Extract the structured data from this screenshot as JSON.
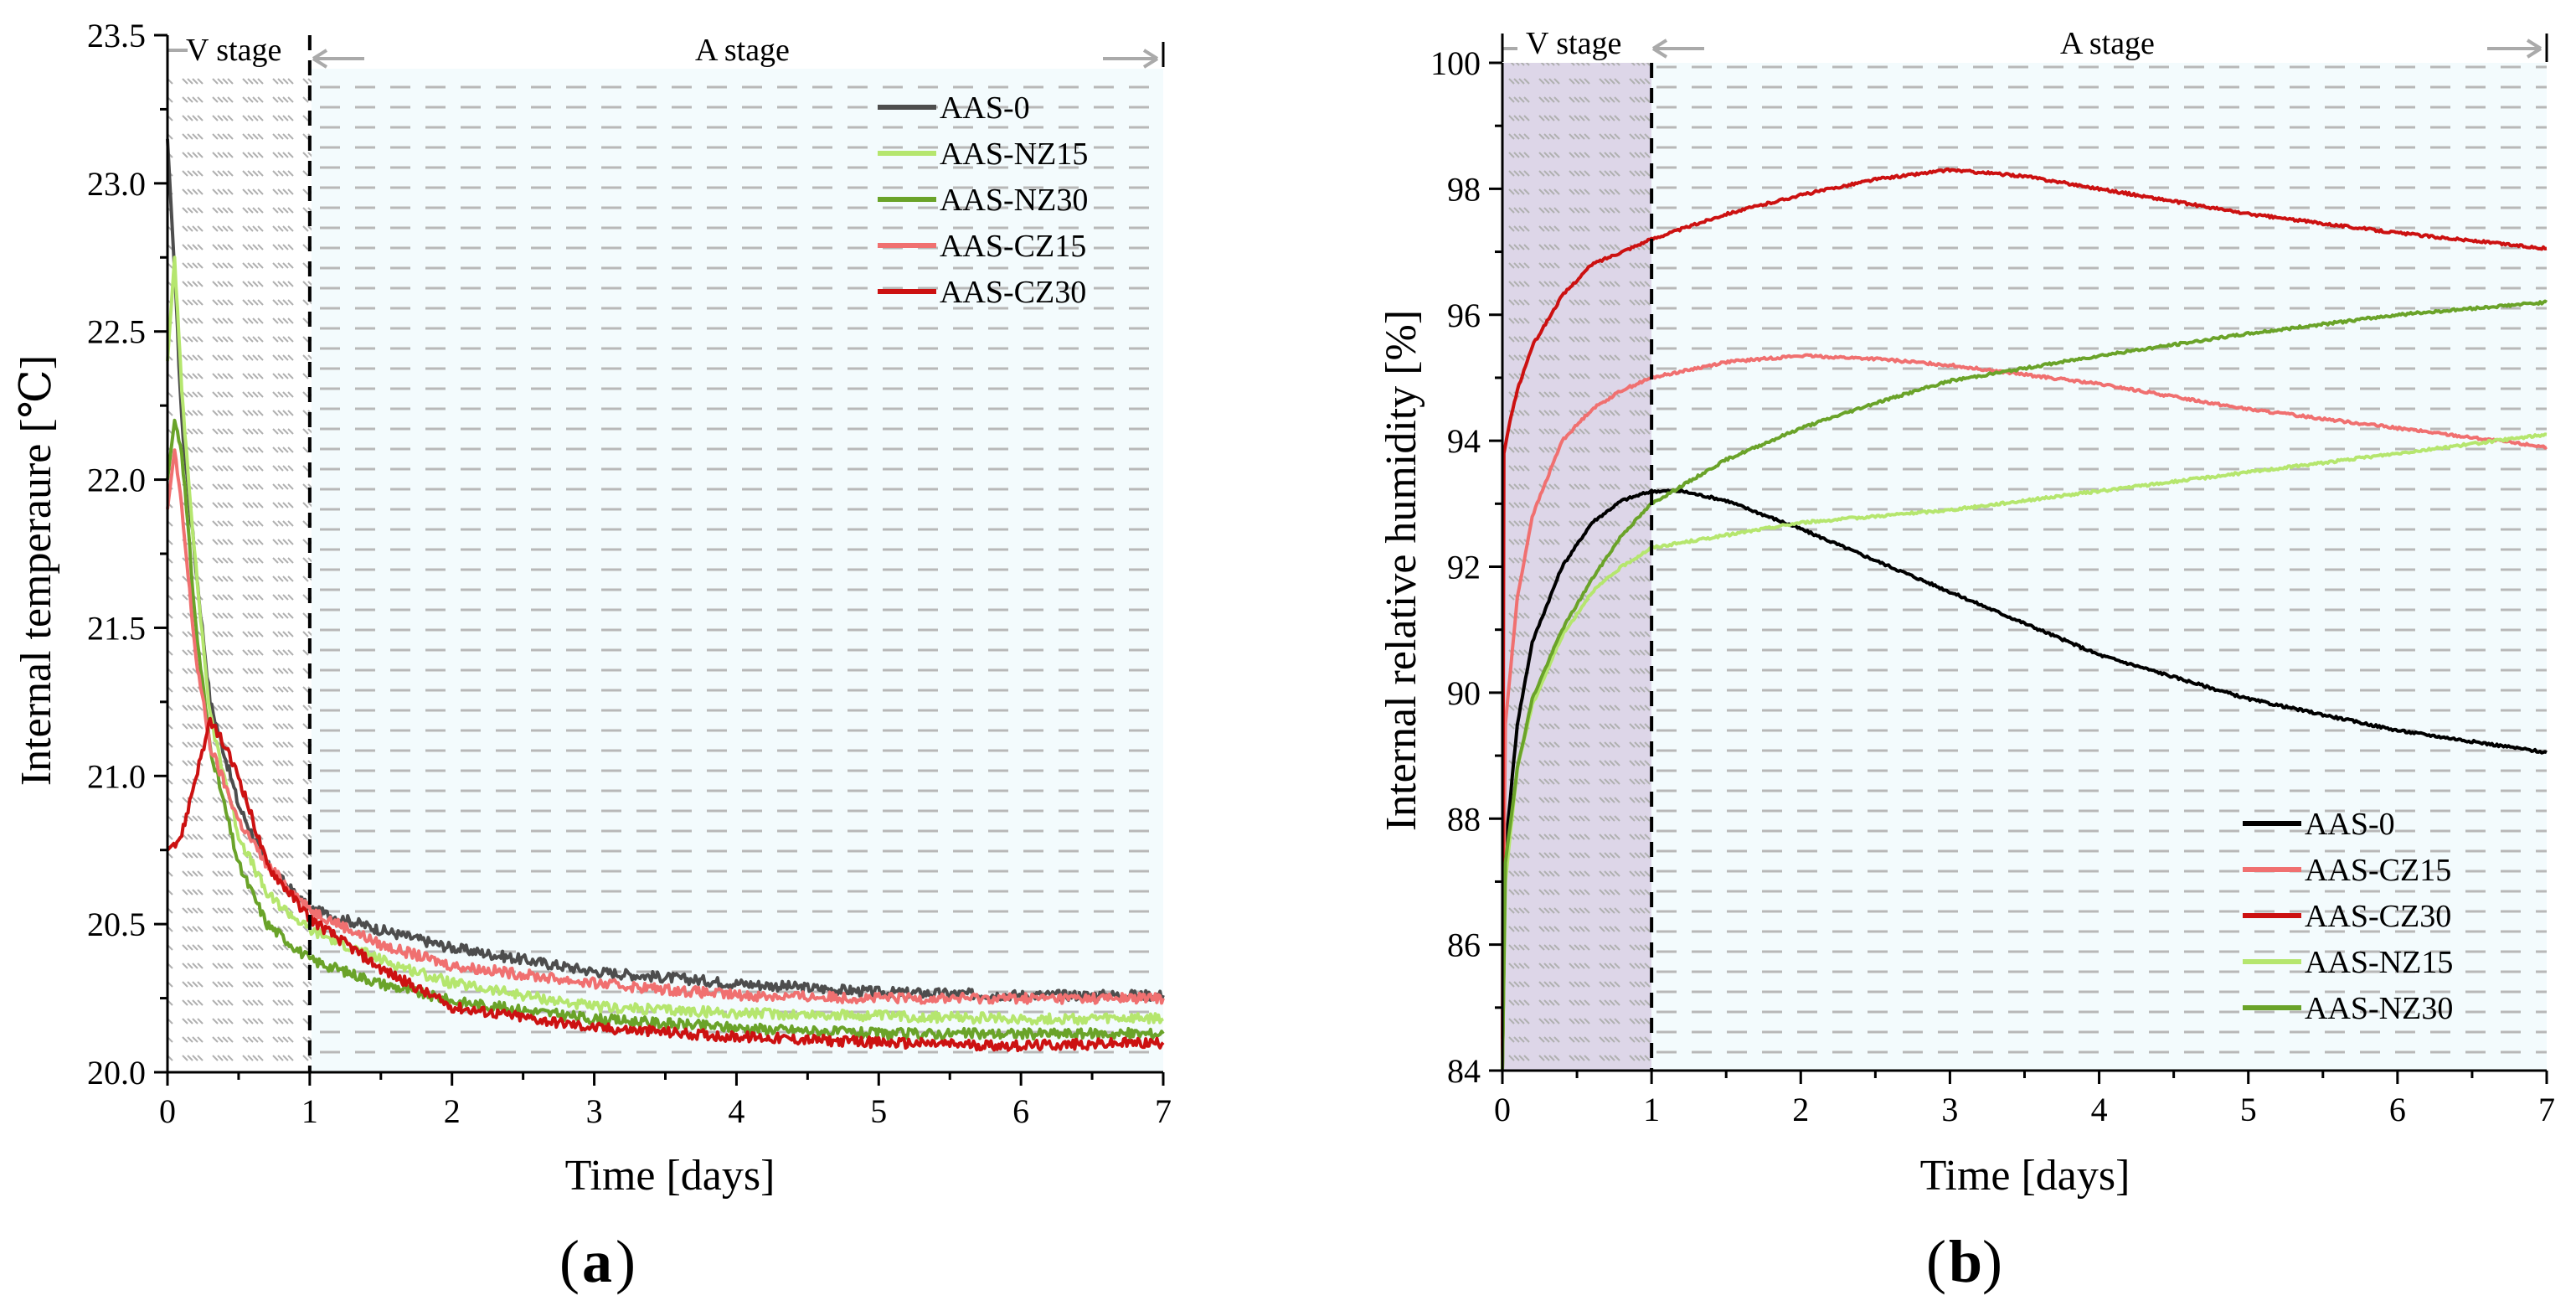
{
  "chart_data": [
    {
      "type": "line",
      "id": "a",
      "panel_label": "a",
      "xlabel": "Time [days]",
      "ylabel": "Internal temperaure [℃]",
      "xlim": [
        0,
        7
      ],
      "ylim": [
        20.0,
        23.5
      ],
      "xticks": [
        0,
        1,
        2,
        3,
        4,
        5,
        6,
        7
      ],
      "xtick_labels": [
        "0",
        "1",
        "2",
        "3",
        "4",
        "5",
        "6",
        "7"
      ],
      "yticks": [
        20.0,
        20.5,
        21.0,
        21.5,
        22.0,
        22.5,
        23.0,
        23.5
      ],
      "ytick_labels": [
        "20.0",
        "20.5",
        "21.0",
        "21.5",
        "22.0",
        "22.5",
        "23.0",
        "23.5"
      ],
      "stage_divider": 1,
      "stages": [
        "V stage",
        "A stage"
      ],
      "legend_position": "top-right",
      "series": [
        {
          "name": "AAS-0",
          "color": "#4d4d4d",
          "x": [
            0,
            0.05,
            0.1,
            0.2,
            0.3,
            0.5,
            0.7,
            1.0,
            1.5,
            2,
            2.5,
            3,
            4,
            5,
            6,
            7
          ],
          "y": [
            23.15,
            22.7,
            22.2,
            21.7,
            21.25,
            20.9,
            20.7,
            20.55,
            20.48,
            20.42,
            20.38,
            20.34,
            20.3,
            20.27,
            20.26,
            20.26
          ]
        },
        {
          "name": "AAS-NZ15",
          "color": "#b5e66e",
          "x": [
            0,
            0.05,
            0.1,
            0.2,
            0.3,
            0.5,
            0.7,
            1.0,
            1.5,
            2,
            3,
            4,
            5,
            6,
            7
          ],
          "y": [
            22.4,
            22.75,
            22.3,
            21.7,
            21.2,
            20.8,
            20.6,
            20.48,
            20.38,
            20.3,
            20.22,
            20.2,
            20.19,
            20.18,
            20.18
          ]
        },
        {
          "name": "AAS-NZ30",
          "color": "#6aa329",
          "x": [
            0,
            0.05,
            0.1,
            0.2,
            0.3,
            0.5,
            0.7,
            1.0,
            1.5,
            2,
            3,
            4,
            5,
            6,
            7
          ],
          "y": [
            22.0,
            22.2,
            22.1,
            21.5,
            21.1,
            20.7,
            20.5,
            20.38,
            20.3,
            20.24,
            20.18,
            20.15,
            20.13,
            20.13,
            20.13
          ]
        },
        {
          "name": "AAS-CZ15",
          "color": "#f07070",
          "x": [
            0,
            0.05,
            0.1,
            0.2,
            0.3,
            0.5,
            0.7,
            1.0,
            1.5,
            2,
            3,
            4,
            5,
            6,
            7
          ],
          "y": [
            21.9,
            22.1,
            21.9,
            21.4,
            21.1,
            20.85,
            20.7,
            20.55,
            20.43,
            20.36,
            20.3,
            20.26,
            20.25,
            20.25,
            20.25
          ]
        },
        {
          "name": "AAS-CZ30",
          "color": "#cc1111",
          "x": [
            0,
            0.1,
            0.2,
            0.3,
            0.35,
            0.5,
            0.7,
            1.0,
            1.5,
            2,
            3,
            4,
            5,
            6,
            7
          ],
          "y": [
            20.75,
            20.8,
            21.0,
            21.18,
            21.15,
            21.0,
            20.7,
            20.52,
            20.35,
            20.22,
            20.15,
            20.12,
            20.1,
            20.09,
            20.1
          ]
        }
      ]
    },
    {
      "type": "line",
      "id": "b",
      "panel_label": "b",
      "xlabel": "Time [days]",
      "ylabel": "Internal relative humidity  [%]",
      "xlim": [
        0,
        7
      ],
      "ylim": [
        84,
        100
      ],
      "xticks": [
        0,
        1,
        2,
        3,
        4,
        5,
        6,
        7
      ],
      "xtick_labels": [
        "0",
        "1",
        "2",
        "3",
        "4",
        "5",
        "6",
        "7"
      ],
      "yticks": [
        84,
        86,
        88,
        90,
        92,
        94,
        96,
        98,
        100
      ],
      "ytick_labels": [
        "84",
        "86",
        "88",
        "90",
        "92",
        "94",
        "96",
        "98",
        "100"
      ],
      "stage_divider": 1,
      "stages": [
        "V stage",
        "A stage"
      ],
      "legend_position": "bottom-right",
      "series": [
        {
          "name": "AAS-0",
          "color": "#000000",
          "x": [
            0,
            0.02,
            0.1,
            0.2,
            0.4,
            0.6,
            0.8,
            1.0,
            1.2,
            1.5,
            2,
            2.5,
            3,
            4,
            5,
            6,
            7
          ],
          "y": [
            84,
            87.5,
            89.5,
            90.8,
            92.0,
            92.7,
            93.05,
            93.2,
            93.2,
            93.05,
            92.6,
            92.1,
            91.6,
            90.6,
            89.9,
            89.4,
            89.05
          ]
        },
        {
          "name": "AAS-CZ15",
          "color": "#f07070",
          "x": [
            0,
            0.02,
            0.1,
            0.2,
            0.4,
            0.6,
            0.8,
            1.0,
            1.5,
            2,
            2.5,
            3,
            4,
            5,
            6,
            7
          ],
          "y": [
            84.5,
            89.5,
            91.5,
            92.8,
            94.0,
            94.5,
            94.8,
            95.0,
            95.25,
            95.35,
            95.3,
            95.2,
            94.9,
            94.5,
            94.2,
            93.9
          ]
        },
        {
          "name": "AAS-CZ30",
          "color": "#cc1111",
          "x": [
            0,
            0.01,
            0.05,
            0.1,
            0.2,
            0.4,
            0.6,
            0.8,
            1.0,
            1.5,
            2,
            2.5,
            3,
            3.5,
            4,
            5,
            6,
            7
          ],
          "y": [
            84,
            93.8,
            94.3,
            94.8,
            95.5,
            96.3,
            96.8,
            97.0,
            97.2,
            97.6,
            97.9,
            98.15,
            98.3,
            98.2,
            98.0,
            97.6,
            97.3,
            97.05
          ]
        },
        {
          "name": "AAS-NZ15",
          "color": "#b5e66e",
          "x": [
            0,
            0.02,
            0.1,
            0.2,
            0.4,
            0.6,
            0.8,
            1.0,
            1.5,
            2,
            3,
            4,
            5,
            6,
            7
          ],
          "y": [
            84,
            87.0,
            88.8,
            89.8,
            90.9,
            91.6,
            92.0,
            92.3,
            92.5,
            92.7,
            92.9,
            93.2,
            93.5,
            93.8,
            94.1
          ]
        },
        {
          "name": "AAS-NZ30",
          "color": "#6aa329",
          "x": [
            0,
            0.02,
            0.1,
            0.2,
            0.4,
            0.6,
            0.8,
            1.0,
            1.5,
            2,
            2.5,
            3,
            4,
            5,
            6,
            7
          ],
          "y": [
            84,
            87.3,
            88.8,
            89.9,
            91.0,
            91.8,
            92.5,
            93.0,
            93.7,
            94.2,
            94.6,
            94.95,
            95.35,
            95.7,
            96.0,
            96.2
          ]
        }
      ]
    }
  ]
}
